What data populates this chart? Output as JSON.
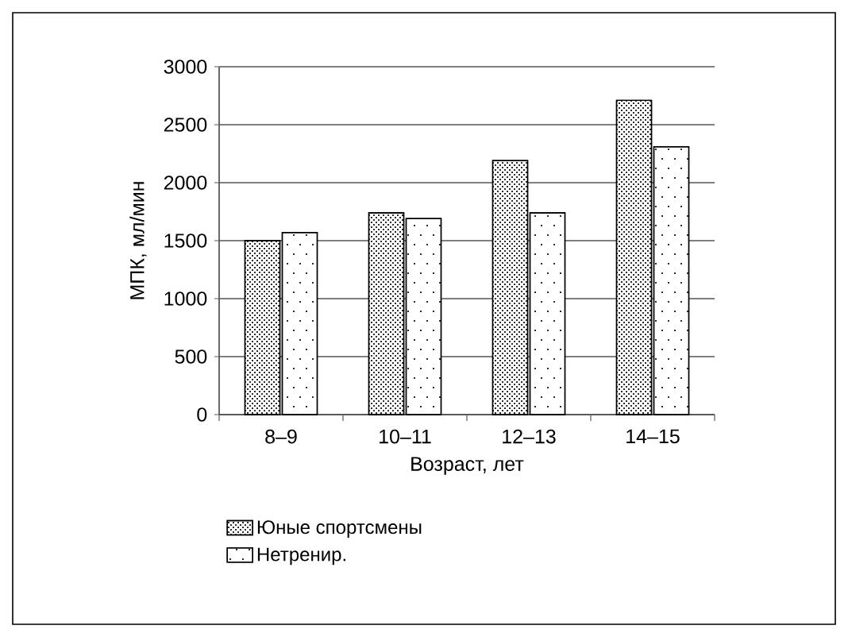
{
  "chart_data": {
    "type": "bar",
    "ylabel": "МПК, мл/мин",
    "xlabel": "Возраст, лет",
    "categories": [
      "8–9",
      "10–11",
      "12–13",
      "14–15"
    ],
    "series": [
      {
        "name": "Юные спортсмены",
        "color": "#000000",
        "values": [
          1500,
          1740,
          2190,
          2710
        ]
      },
      {
        "name": "Нетренир.",
        "color": "#000000",
        "values": [
          1570,
          1690,
          1740,
          2310
        ]
      }
    ],
    "ylim": [
      0,
      3000
    ],
    "yticks": [
      0,
      500,
      1000,
      1500,
      2000,
      2500,
      3000
    ],
    "grid": "y",
    "legend": "bottom"
  }
}
